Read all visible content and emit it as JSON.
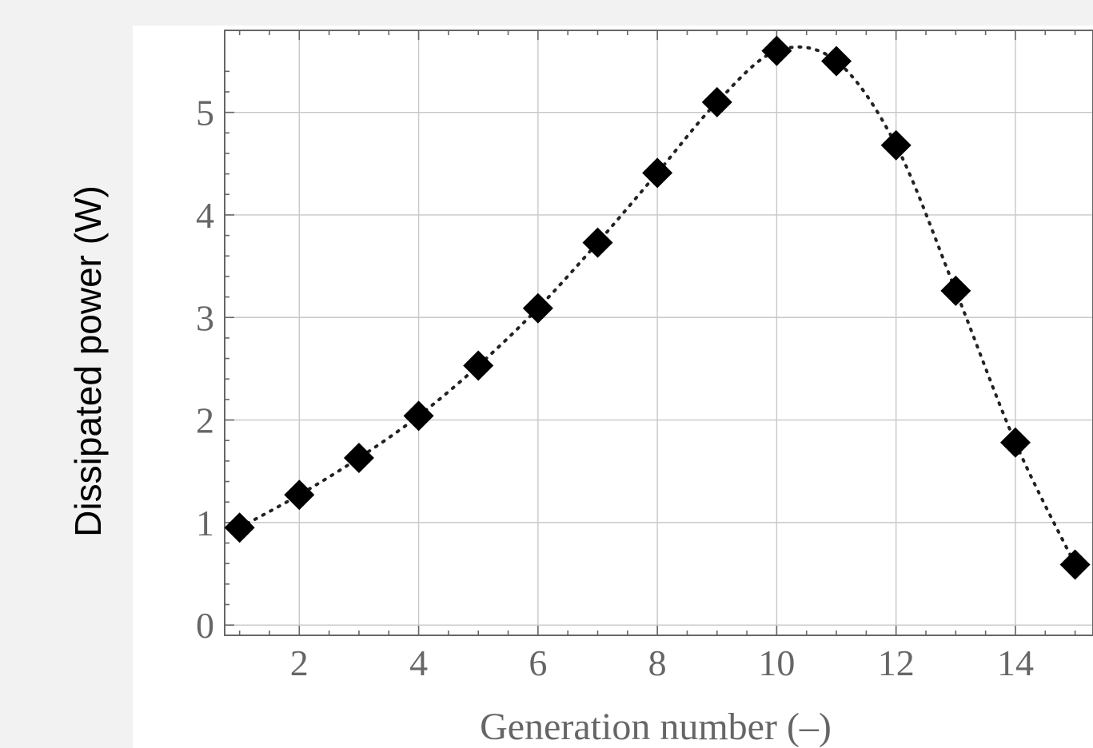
{
  "chart_data": {
    "type": "scatter",
    "title": "",
    "xlabel": "Generation number (–)",
    "ylabel": "Dissipated power (W)",
    "xlim": [
      0.75,
      15.3
    ],
    "ylim": [
      -0.1,
      5.8
    ],
    "xticks": [
      2,
      4,
      6,
      8,
      10,
      12,
      14
    ],
    "yticks": [
      0,
      1,
      2,
      3,
      4,
      5
    ],
    "grid": true,
    "marker": "diamond",
    "line_style": "dotted",
    "colors": {
      "marker": "#000000",
      "line": "#222222",
      "axis": "#666666",
      "grid": "#c8c8c8"
    },
    "series": [
      {
        "x": [
          1,
          2,
          3,
          4,
          5,
          6,
          7,
          8,
          9,
          10,
          11,
          12,
          13,
          14,
          15
        ],
        "y": [
          0.95,
          1.27,
          1.63,
          2.04,
          2.53,
          3.09,
          3.73,
          4.41,
          5.1,
          5.6,
          5.5,
          4.68,
          3.26,
          1.78,
          0.59
        ]
      }
    ]
  }
}
